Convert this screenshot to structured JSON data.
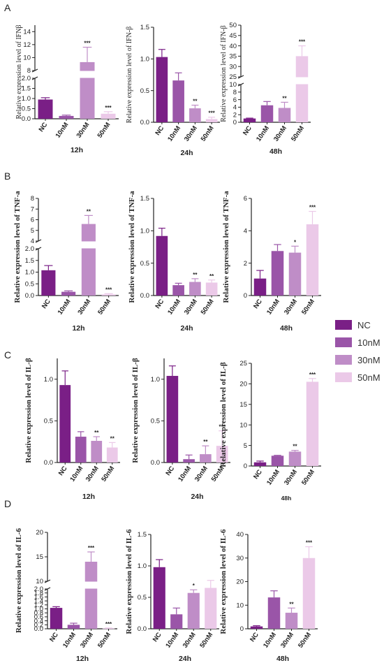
{
  "colors": {
    "NC": "#7a1f86",
    "10nM": "#9a55a8",
    "30nM": "#bf8dc7",
    "50nM": "#ebc9e8"
  },
  "legend": [
    {
      "name": "NC",
      "color": "#7a1f86"
    },
    {
      "name": "10nM",
      "color": "#9a55a8"
    },
    {
      "name": "30nM",
      "color": "#bf8dc7"
    },
    {
      "name": "50nM",
      "color": "#ebc9e8"
    }
  ],
  "panel_labels": [
    "A",
    "B",
    "C",
    "D"
  ],
  "chart_data": [
    {
      "panel": "A",
      "type": "bar",
      "time": "12h",
      "ylabel": "Relative expression level of IFNβ",
      "categories": [
        "NC",
        "10nM",
        "30nM",
        "50nM"
      ],
      "values": [
        0.95,
        0.14,
        9.3,
        0.25
      ],
      "errors": [
        0.09,
        0.04,
        2.3,
        0.1
      ],
      "significance": [
        "",
        "",
        "***",
        "***"
      ],
      "broken_axis": true,
      "lower_ylim": [
        0,
        2.0
      ],
      "upper_ylim": [
        8,
        15
      ],
      "lower_ticks": [
        "0.0",
        "0.5",
        "1.0",
        "1.5",
        "2.0"
      ],
      "upper_ticks": [
        "8",
        "10",
        "12",
        "14"
      ]
    },
    {
      "panel": "A",
      "type": "bar",
      "time": "24h",
      "ylabel": "Relative expression level of IFN-β",
      "categories": [
        "NC",
        "10nM",
        "30nM",
        "50nM"
      ],
      "values": [
        1.03,
        0.66,
        0.22,
        0.05
      ],
      "errors": [
        0.12,
        0.12,
        0.05,
        0.03
      ],
      "significance": [
        "",
        "",
        "**",
        "***"
      ],
      "ylim": [
        0,
        1.5
      ],
      "ticks": [
        "0.0",
        "0.5",
        "1.0",
        "1.5"
      ]
    },
    {
      "panel": "A",
      "type": "bar",
      "time": "48h",
      "ylabel": "Relative expression level of IFN-β",
      "categories": [
        "NC",
        "10nM",
        "30nM",
        "50nM"
      ],
      "values": [
        1.0,
        4.5,
        3.8,
        35
      ],
      "errors": [
        0.1,
        1.0,
        1.5,
        5
      ],
      "significance": [
        "",
        "",
        "**",
        "***"
      ],
      "broken_axis": true,
      "lower_ylim": [
        0,
        10
      ],
      "upper_ylim": [
        25,
        50
      ],
      "lower_ticks": [
        "0",
        "2",
        "4",
        "6",
        "8",
        "10"
      ],
      "upper_ticks": [
        "25",
        "30",
        "35",
        "40",
        "45",
        "50"
      ]
    },
    {
      "panel": "B",
      "type": "bar",
      "time": "12h",
      "ylabel": "Relative expression level of TNF-a",
      "categories": [
        "NC",
        "10nM",
        "30nM",
        "50nM"
      ],
      "values": [
        1.08,
        0.16,
        5.6,
        0.05
      ],
      "errors": [
        0.2,
        0.04,
        0.8,
        0.03
      ],
      "significance": [
        "",
        "",
        "**",
        "***"
      ],
      "broken_axis": true,
      "lower_ylim": [
        0,
        2.0
      ],
      "upper_ylim": [
        4,
        8
      ],
      "lower_ticks": [
        "0.0",
        "0.5",
        "1.0",
        "1.5",
        "2.0"
      ],
      "upper_ticks": [
        "4",
        "5",
        "6",
        "7",
        "8"
      ]
    },
    {
      "panel": "B",
      "type": "bar",
      "time": "24h",
      "ylabel": "Relative expression level of TNF-a",
      "categories": [
        "NC",
        "10nM",
        "30nM",
        "50nM"
      ],
      "values": [
        0.92,
        0.16,
        0.21,
        0.2
      ],
      "errors": [
        0.12,
        0.03,
        0.05,
        0.04
      ],
      "significance": [
        "",
        "",
        "**",
        "**"
      ],
      "ylim": [
        0,
        1.5
      ],
      "ticks": [
        "0.0",
        "0.5",
        "1.0",
        "1.5"
      ]
    },
    {
      "panel": "B",
      "type": "bar",
      "time": "48h",
      "ylabel": "Relative expression level of TNF-a",
      "categories": [
        "NC",
        "10nM",
        "30nM",
        "50nM"
      ],
      "values": [
        1.05,
        2.75,
        2.65,
        4.4
      ],
      "errors": [
        0.5,
        0.4,
        0.4,
        0.8
      ],
      "significance": [
        "",
        "",
        "*",
        "***"
      ],
      "ylim": [
        0,
        6
      ],
      "ticks": [
        "0",
        "2",
        "4",
        "6"
      ]
    },
    {
      "panel": "C",
      "type": "bar",
      "time": "12h",
      "ylabel": "Relative expression level of IL-β",
      "categories": [
        "NC",
        "10nM",
        "30nM",
        "50nM"
      ],
      "values": [
        0.93,
        0.31,
        0.26,
        0.18
      ],
      "errors": [
        0.17,
        0.06,
        0.05,
        0.06
      ],
      "significance": [
        "",
        "",
        "**",
        "**"
      ],
      "ylim": [
        0,
        1.25
      ],
      "ticks": [
        "0.0",
        "0.5",
        "1.0"
      ]
    },
    {
      "panel": "C",
      "type": "bar",
      "time": "24h",
      "ylabel": "Relative expression level of IL-β",
      "categories": [
        "NC",
        "10nM",
        "30nM",
        "50nM"
      ],
      "values": [
        1.04,
        0.04,
        0.1,
        0.2
      ],
      "errors": [
        0.12,
        0.05,
        0.1,
        0.18
      ],
      "significance": [
        "",
        "",
        "**",
        "***"
      ],
      "ylim": [
        0,
        1.25
      ],
      "ticks": [
        "0.0",
        "0.5",
        "1.0"
      ]
    },
    {
      "panel": "C",
      "type": "bar",
      "time": "48h",
      "ylabel": "Relative expression level of IL-β",
      "categories": [
        "NC",
        "10nM",
        "30nM",
        "50nM"
      ],
      "values": [
        0.9,
        2.5,
        3.5,
        20.5
      ],
      "errors": [
        0.3,
        0.1,
        0.3,
        0.8
      ],
      "significance": [
        "",
        "",
        "**",
        "***"
      ],
      "ylim": [
        0,
        25
      ],
      "ticks": [
        "0",
        "5",
        "10",
        "15",
        "20",
        "25"
      ]
    },
    {
      "panel": "D",
      "type": "bar",
      "time": "12h",
      "ylabel": "Relative expression level of IL-6",
      "categories": [
        "NC",
        "10nM",
        "30nM",
        "50nM"
      ],
      "values": [
        1.05,
        0.2,
        14,
        0.02
      ],
      "errors": [
        0.06,
        0.08,
        2.0,
        0.02
      ],
      "significance": [
        "",
        "",
        "***",
        "***"
      ],
      "broken_axis": true,
      "lower_ylim": [
        0,
        2.0
      ],
      "upper_ylim": [
        10,
        20
      ],
      "lower_ticks": [
        "0.0",
        "0.2",
        "0.4",
        "0.6",
        "0.8",
        "1.0",
        "1.2",
        "1.4",
        "1.6",
        "1.8",
        "2.0"
      ],
      "upper_ticks": [
        "10",
        "15",
        "20"
      ]
    },
    {
      "panel": "D",
      "type": "bar",
      "time": "24h",
      "ylabel": "Relative expression level of IL-6",
      "categories": [
        "NC",
        "10nM",
        "30nM",
        "50nM"
      ],
      "values": [
        0.98,
        0.23,
        0.57,
        0.65
      ],
      "errors": [
        0.12,
        0.1,
        0.05,
        0.12
      ],
      "significance": [
        "",
        "",
        "*",
        ""
      ],
      "ylim": [
        0,
        1.5
      ],
      "ticks": [
        "0.0",
        "0.5",
        "1.0",
        "1.5"
      ]
    },
    {
      "panel": "D",
      "type": "bar",
      "time": "48h",
      "ylabel": "Relative expression level of IL-6",
      "categories": [
        "NC",
        "10nM",
        "30nM",
        "50nM"
      ],
      "values": [
        1.0,
        13.3,
        6.8,
        30
      ],
      "errors": [
        0.3,
        2.8,
        2.0,
        4.8
      ],
      "significance": [
        "",
        "",
        "**",
        "***"
      ],
      "ylim": [
        0,
        40
      ],
      "ticks": [
        "0",
        "10",
        "20",
        "30",
        "40"
      ]
    }
  ]
}
